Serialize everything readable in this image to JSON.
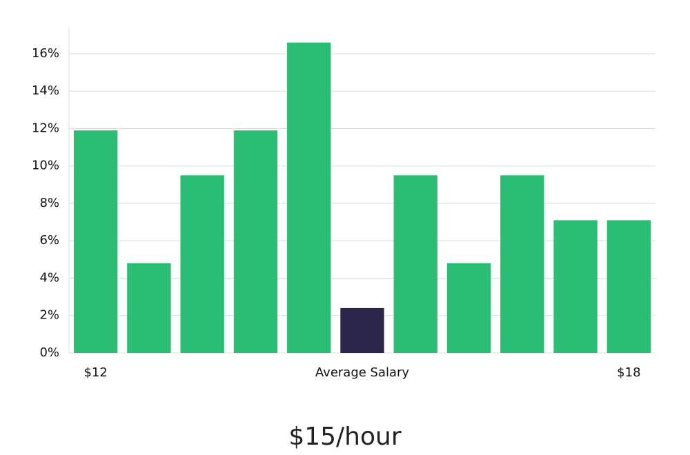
{
  "chart_data": {
    "type": "bar",
    "categories": [
      "$12",
      null,
      null,
      null,
      null,
      "Average Salary",
      null,
      null,
      null,
      null,
      "$18"
    ],
    "values": [
      11.9,
      4.8,
      9.5,
      11.9,
      16.6,
      2.4,
      9.5,
      4.8,
      9.5,
      7.1,
      7.1
    ],
    "colors": [
      "#2bbd74",
      "#2bbd74",
      "#2bbd74",
      "#2bbd74",
      "#2bbd74",
      "#2a2549",
      "#2bbd74",
      "#2bbd74",
      "#2bbd74",
      "#2bbd74",
      "#2bbd74"
    ],
    "ylim": [
      0,
      17.4
    ],
    "yticks": [
      {
        "value": 0,
        "label": "0%"
      },
      {
        "value": 2,
        "label": "2%"
      },
      {
        "value": 4,
        "label": "4%"
      },
      {
        "value": 6,
        "label": "6%"
      },
      {
        "value": 8,
        "label": "8%"
      },
      {
        "value": 10,
        "label": "10%"
      },
      {
        "value": 12,
        "label": "12%"
      },
      {
        "value": 14,
        "label": "14%"
      },
      {
        "value": 16,
        "label": "16%"
      }
    ],
    "grid": true,
    "caption": "$15/hour"
  }
}
